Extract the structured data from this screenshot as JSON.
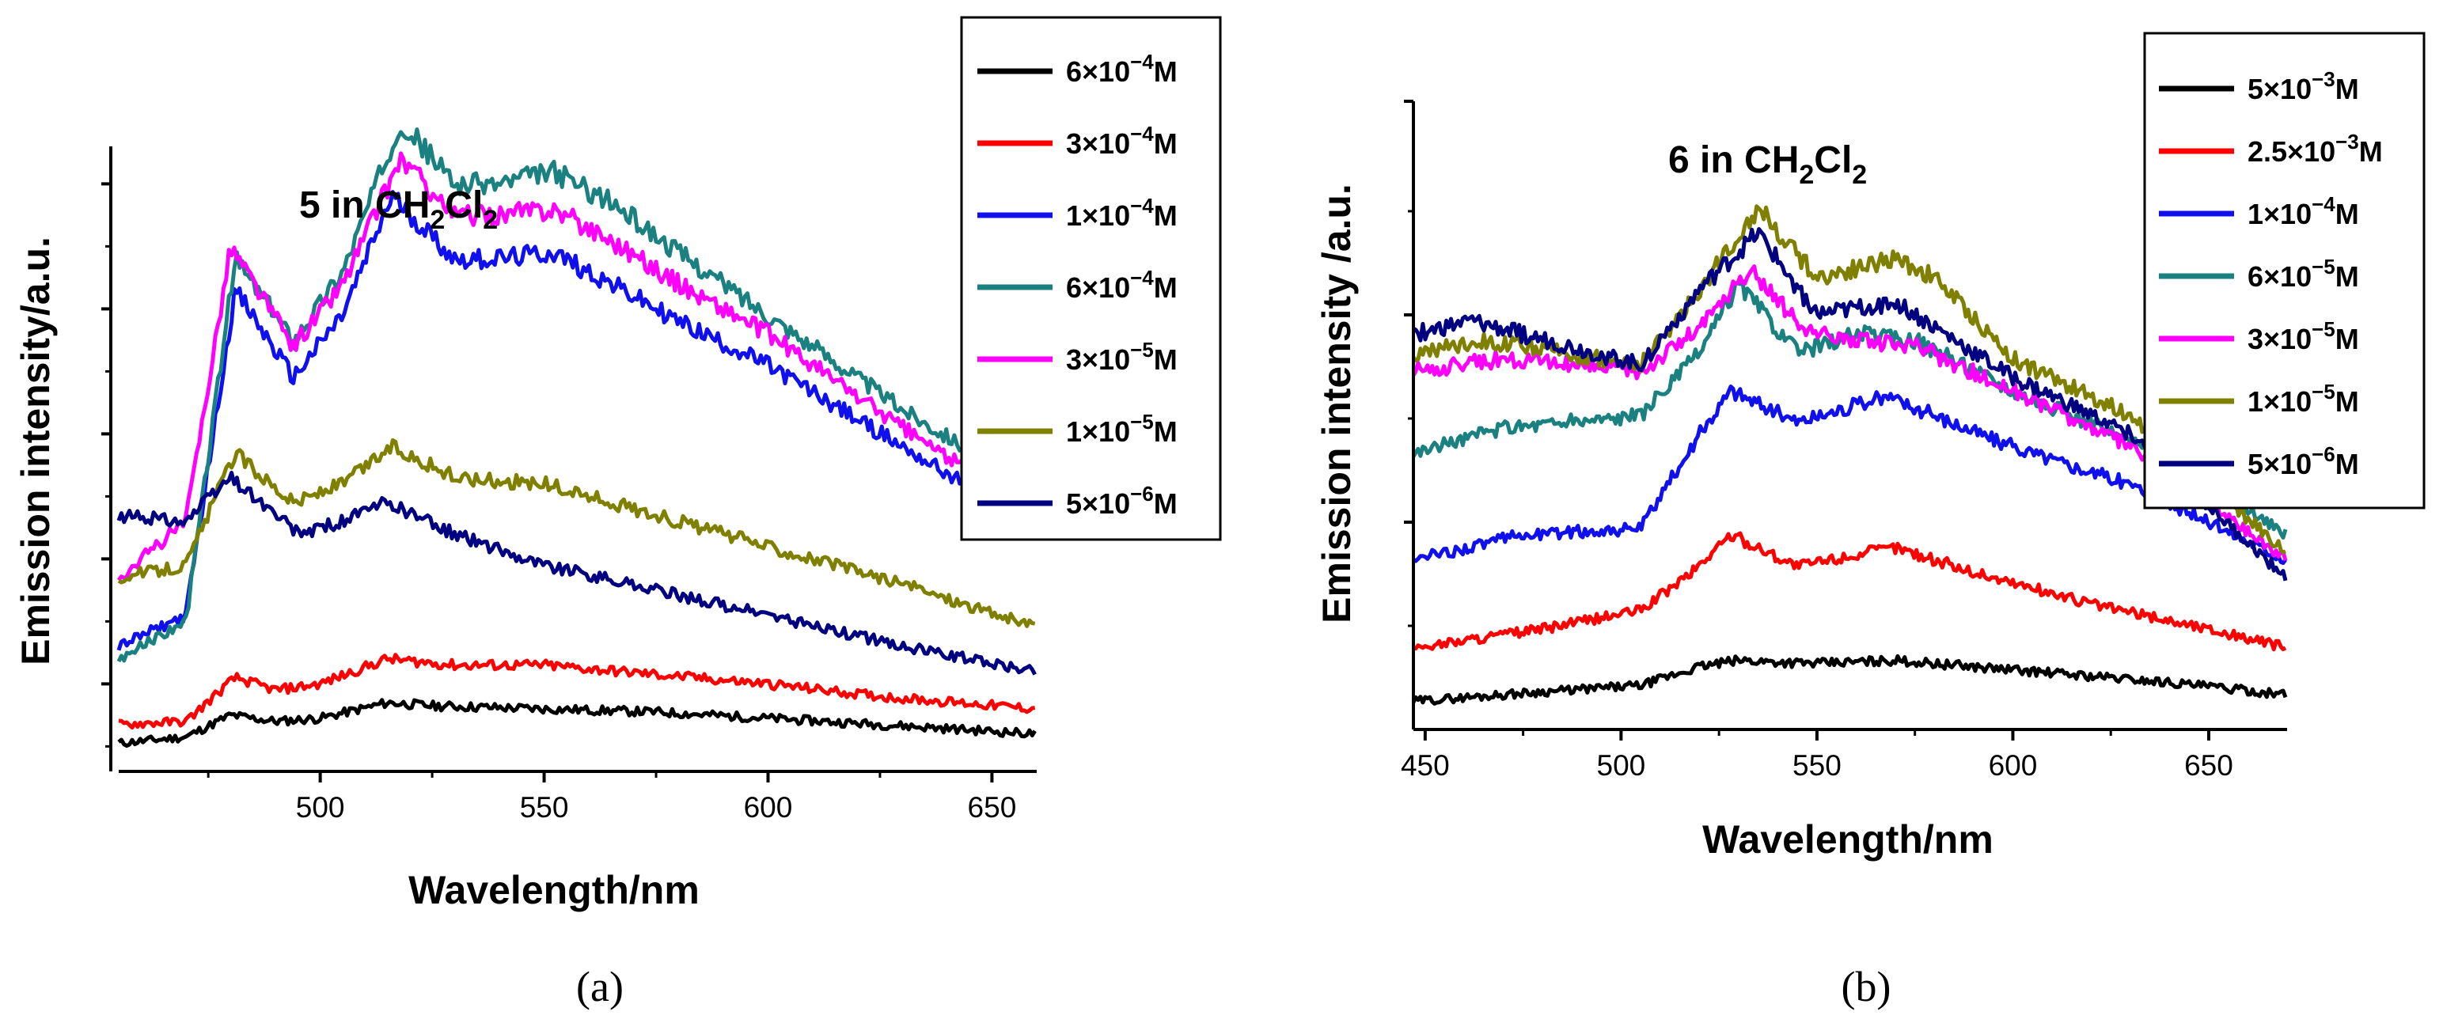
{
  "figure": {
    "captions": [
      "(a)",
      "(b)"
    ]
  },
  "chart_data": [
    {
      "type": "line",
      "panel": "a",
      "title_main": "5 in CH",
      "title_sub1": "2",
      "title_mid": "Cl",
      "title_sub2": "2",
      "xlabel": "Wavelength/nm",
      "ylabel": "Emission intensity/a.u.",
      "xlim": [
        455,
        660
      ],
      "ylim": [
        0,
        100
      ],
      "xticks": [
        500,
        550,
        600,
        650
      ],
      "y_tick_labels_shown": false,
      "legend_position": "top-right",
      "series": [
        {
          "name": "6×10⁻⁴M",
          "label_base": "6×10",
          "label_exp": "−4",
          "label_unit": "M",
          "color": "#000000",
          "x": [
            455,
            470,
            480,
            490,
            500,
            515,
            525,
            550,
            575,
            600,
            625,
            660
          ],
          "y": [
            4.5,
            5.5,
            9,
            8,
            8.5,
            11,
            10.5,
            10,
            9.5,
            8.5,
            7.5,
            6
          ]
        },
        {
          "name": "3×10⁻⁴M",
          "label_base": "3×10",
          "label_exp": "−4",
          "label_unit": "M",
          "color": "#ff0000",
          "x": [
            455,
            470,
            481,
            490,
            500,
            515,
            530,
            550,
            575,
            600,
            625,
            660
          ],
          "y": [
            7.5,
            8,
            15,
            13,
            14,
            18,
            17,
            17,
            15.5,
            14,
            12,
            10
          ]
        },
        {
          "name": "1×10⁻⁴M",
          "label_base": "1×10",
          "label_exp": "−4",
          "label_unit": "M",
          "color": "#1010ee",
          "x": [
            455,
            470,
            481,
            494,
            505,
            516,
            530,
            540,
            552,
            565,
            580,
            600,
            630,
            660
          ],
          "y": [
            20,
            25,
            77,
            63,
            73,
            92,
            82,
            82,
            83,
            78,
            72,
            65,
            52,
            39
          ]
        },
        {
          "name": "6×10⁻⁴M",
          "label_base": "6×10",
          "label_exp": "−4",
          "label_unit": "M",
          "color": "#1a8080",
          "x": [
            455,
            470,
            481,
            494,
            505,
            518,
            530,
            540,
            552,
            565,
            580,
            600,
            630,
            660
          ],
          "y": [
            18,
            24,
            82,
            69,
            80,
            104,
            94,
            94,
            96,
            91,
            83,
            73,
            58,
            45
          ]
        },
        {
          "name": "3×10⁻⁵M",
          "label_base": "3×10",
          "label_exp": "−5",
          "label_unit": "M",
          "color": "#ff00ff",
          "x": [
            455,
            470,
            480,
            494,
            505,
            518,
            530,
            540,
            552,
            565,
            580,
            600,
            630,
            660
          ],
          "y": [
            31,
            40,
            84,
            68,
            78,
            98,
            89,
            89,
            90,
            85,
            78,
            70,
            55,
            41
          ]
        },
        {
          "name": "1×10⁻⁵M",
          "label_base": "1×10",
          "label_exp": "−5",
          "label_unit": "M",
          "color": "#808000",
          "x": [
            455,
            470,
            481,
            494,
            505,
            516,
            530,
            550,
            570,
            600,
            630,
            660
          ],
          "y": [
            31,
            33,
            51,
            43,
            46,
            52,
            47,
            46,
            42,
            36,
            30,
            23
          ]
        },
        {
          "name": "5×10⁻⁶M",
          "label_base": "5×10",
          "label_exp": "−6",
          "label_unit": "M",
          "color": "#000080",
          "x": [
            455,
            470,
            480,
            495,
            505,
            515,
            530,
            550,
            575,
            600,
            630,
            660
          ],
          "y": [
            41,
            40,
            47,
            38,
            40,
            43,
            38,
            33,
            29,
            25,
            20,
            16
          ]
        }
      ]
    },
    {
      "type": "line",
      "panel": "b",
      "title_main": "6 in CH",
      "title_sub1": "2",
      "title_mid": "Cl",
      "title_sub2": "2",
      "xlabel": "Wavelength/nm",
      "ylabel": "Emission intensity /a.u.",
      "xlim": [
        447,
        670
      ],
      "ylim": [
        0,
        100
      ],
      "xticks": [
        450,
        500,
        550,
        600,
        650
      ],
      "y_tick_labels_shown": false,
      "legend_position": "top-right",
      "series": [
        {
          "name": "5×10⁻³M",
          "label_base": "5×10",
          "label_exp": "−3",
          "label_unit": "M",
          "color": "#000000",
          "x": [
            447,
            480,
            505,
            520,
            530,
            550,
            570,
            600,
            640,
            670
          ],
          "y": [
            4.5,
            6,
            7,
            10,
            11,
            10.5,
            11,
            9.5,
            7.5,
            5.5
          ]
        },
        {
          "name": "2.5×10⁻³M",
          "label_base": "2.5×10",
          "label_exp": "−3",
          "label_unit": "M",
          "color": "#ff0000",
          "x": [
            447,
            480,
            505,
            518,
            528,
            545,
            570,
            590,
            620,
            650,
            670
          ],
          "y": [
            13,
            16,
            19,
            25,
            31,
            26,
            29,
            25,
            20,
            16,
            13
          ]
        },
        {
          "name": "1×10⁻⁴M",
          "label_base": "1×10",
          "label_exp": "−4",
          "label_unit": "M",
          "color": "#1010ee",
          "x": [
            447,
            475,
            505,
            520,
            528,
            545,
            568,
            580,
            600,
            630,
            670
          ],
          "y": [
            27,
            31,
            32,
            47,
            54,
            49,
            53,
            50,
            45,
            39,
            27
          ]
        },
        {
          "name": "6×10⁻⁵M",
          "label_base": "6×10",
          "label_exp": "−5",
          "label_unit": "M",
          "color": "#1a8080",
          "x": [
            447,
            470,
            505,
            520,
            530,
            545,
            560,
            575,
            600,
            630,
            670
          ],
          "y": [
            44,
            48,
            50,
            60,
            71,
            60,
            63,
            62,
            54,
            46,
            31
          ]
        },
        {
          "name": "3×10⁻⁵M",
          "label_base": "3×10",
          "label_exp": "−5",
          "label_unit": "M",
          "color": "#ff00ff",
          "x": [
            447,
            470,
            505,
            520,
            533,
            548,
            560,
            575,
            600,
            630,
            670
          ],
          "y": [
            57,
            59,
            57,
            64,
            73,
            63,
            62,
            61,
            54,
            45,
            27
          ]
        },
        {
          "name": "1×10⁻⁵M",
          "label_base": "1×10",
          "label_exp": "−5",
          "label_unit": "M",
          "color": "#808000",
          "x": [
            447,
            465,
            505,
            520,
            535,
            550,
            570,
            580,
            600,
            630,
            670
          ],
          "y": [
            60,
            62,
            58,
            70,
            83,
            72,
            75,
            72,
            59,
            50,
            28
          ]
        },
        {
          "name": "5×10⁻⁶M",
          "label_base": "5×10",
          "label_exp": "−6",
          "label_unit": "M",
          "color": "#000080",
          "x": [
            447,
            462,
            505,
            520,
            535,
            550,
            570,
            580,
            600,
            630,
            670
          ],
          "y": [
            63,
            65,
            58,
            70,
            79,
            66,
            68,
            64,
            56,
            47,
            24
          ]
        }
      ]
    }
  ]
}
